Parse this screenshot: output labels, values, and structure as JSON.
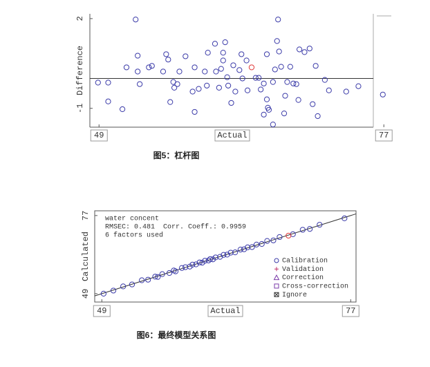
{
  "chart_data": [
    {
      "type": "scatter",
      "caption": "图5：杠杆图",
      "x_label": "Actual",
      "y_label": "Difference",
      "xlim": [
        48.1,
        77.8
      ],
      "xticks": [
        49,
        77
      ],
      "ylim": [
        -1.63,
        2.16
      ],
      "yticks": [
        -1,
        2
      ],
      "hline": 0,
      "series": [
        {
          "color": "#3a3aa8",
          "x": [
            52.6,
            66.6,
            48.9,
            49.9,
            49.9,
            51.3,
            51.7,
            52.8,
            52.8,
            53.0,
            53.9,
            54.2,
            55.3,
            55.6,
            55.8,
            56.3,
            56.4,
            56.7,
            56.9,
            56.0,
            57.5,
            58.2,
            58.4,
            58.4,
            58.8,
            59.4,
            59.6,
            59.7,
            60.4,
            60.5,
            60.8,
            61.0,
            61.2,
            61.2,
            61.4,
            61.6,
            61.7,
            62.0,
            62.2,
            62.4,
            62.8,
            63.0,
            63.1,
            63.5,
            63.6,
            64.4,
            64.7,
            64.9,
            65.2,
            65.5,
            65.5,
            65.7,
            66.1,
            66.1,
            66.3,
            66.5,
            66.7,
            66.9,
            67.3,
            67.5,
            67.8,
            68.1,
            68.4,
            68.7,
            68.6,
            69.2,
            69.7,
            70.0,
            70.3,
            70.5,
            71.2,
            71.6,
            73.3,
            74.5,
            76.9,
            65.2,
            65.6,
            67.2
          ],
          "values": [
            1.97,
            1.97,
            -0.14,
            -0.14,
            -0.77,
            -1.03,
            0.37,
            0.76,
            0.23,
            -0.19,
            0.37,
            0.42,
            0.23,
            0.81,
            0.63,
            -0.12,
            -0.31,
            -0.19,
            0.23,
            -0.79,
            0.74,
            -0.44,
            0.37,
            -1.12,
            -0.35,
            0.23,
            -0.24,
            0.86,
            1.16,
            0.23,
            -0.31,
            0.32,
            0.6,
            0.86,
            1.21,
            0.04,
            -0.24,
            -0.82,
            0.44,
            -0.44,
            0.28,
            0.81,
            0.0,
            0.6,
            -0.4,
            0.02,
            0.02,
            -0.37,
            -0.17,
            0.81,
            -0.7,
            -1.05,
            -0.12,
            -1.54,
            0.3,
            1.25,
            0.9,
            0.39,
            -0.58,
            -0.12,
            0.39,
            -0.17,
            -0.19,
            0.97,
            -0.72,
            0.88,
            1.0,
            -0.86,
            0.42,
            -1.26,
            -0.05,
            -0.4,
            -0.44,
            -0.26,
            -0.54,
            -1.21,
            -0.98,
            -1.17
          ]
        },
        {
          "color": "#e03a3a",
          "x": [
            64.0
          ],
          "values": [
            0.37
          ]
        }
      ]
    },
    {
      "type": "scatter",
      "caption": "图6：最终模型关系图",
      "x_label": "Actual",
      "y_label": "Calculated",
      "annotations": [
        "water concent",
        "RMSEC: 0.481",
        "Corr. Coeff.: 0.9959",
        "6 factors used"
      ],
      "legend": [
        "Calibration",
        "Validation",
        "Correction",
        "Cross-correction",
        "Ignore"
      ],
      "xlim": [
        48.2,
        77.6
      ],
      "xticks": [
        49,
        77
      ],
      "ylim": [
        46,
        78.7
      ],
      "yticks": [
        49,
        77
      ],
      "diagonal": true,
      "series": [
        {
          "color": "#3a3aa8",
          "x": [
            49.2,
            50.3,
            51.4,
            52.4,
            53.5,
            54.2,
            55.0,
            55.3,
            55.8,
            56.6,
            57.1,
            57.3,
            58.0,
            58.4,
            58.9,
            59.2,
            59.6,
            60.0,
            60.3,
            60.6,
            61.0,
            61.2,
            61.5,
            61.8,
            62.3,
            62.7,
            63.1,
            63.5,
            64.0,
            64.6,
            65.0,
            65.4,
            65.9,
            66.4,
            67.0,
            67.6,
            68.3,
            69.0,
            70.5,
            71.6,
            72.4,
            73.5,
            76.3
          ],
          "values": [
            49.0,
            50.1,
            51.6,
            52.3,
            53.8,
            54.0,
            55.1,
            55.0,
            56.0,
            56.4,
            57.3,
            57.0,
            58.2,
            58.5,
            58.7,
            59.4,
            59.5,
            60.2,
            60.1,
            60.8,
            60.9,
            61.4,
            61.3,
            62.0,
            62.2,
            62.9,
            63.0,
            63.7,
            63.8,
            64.8,
            64.9,
            65.6,
            65.7,
            66.6,
            66.8,
            67.9,
            68.1,
            69.3,
            70.3,
            71.9,
            72.2,
            73.7,
            76.0
          ]
        },
        {
          "color": "#e03a3a",
          "x": [
            70.0
          ],
          "values": [
            69.8
          ]
        }
      ]
    }
  ]
}
